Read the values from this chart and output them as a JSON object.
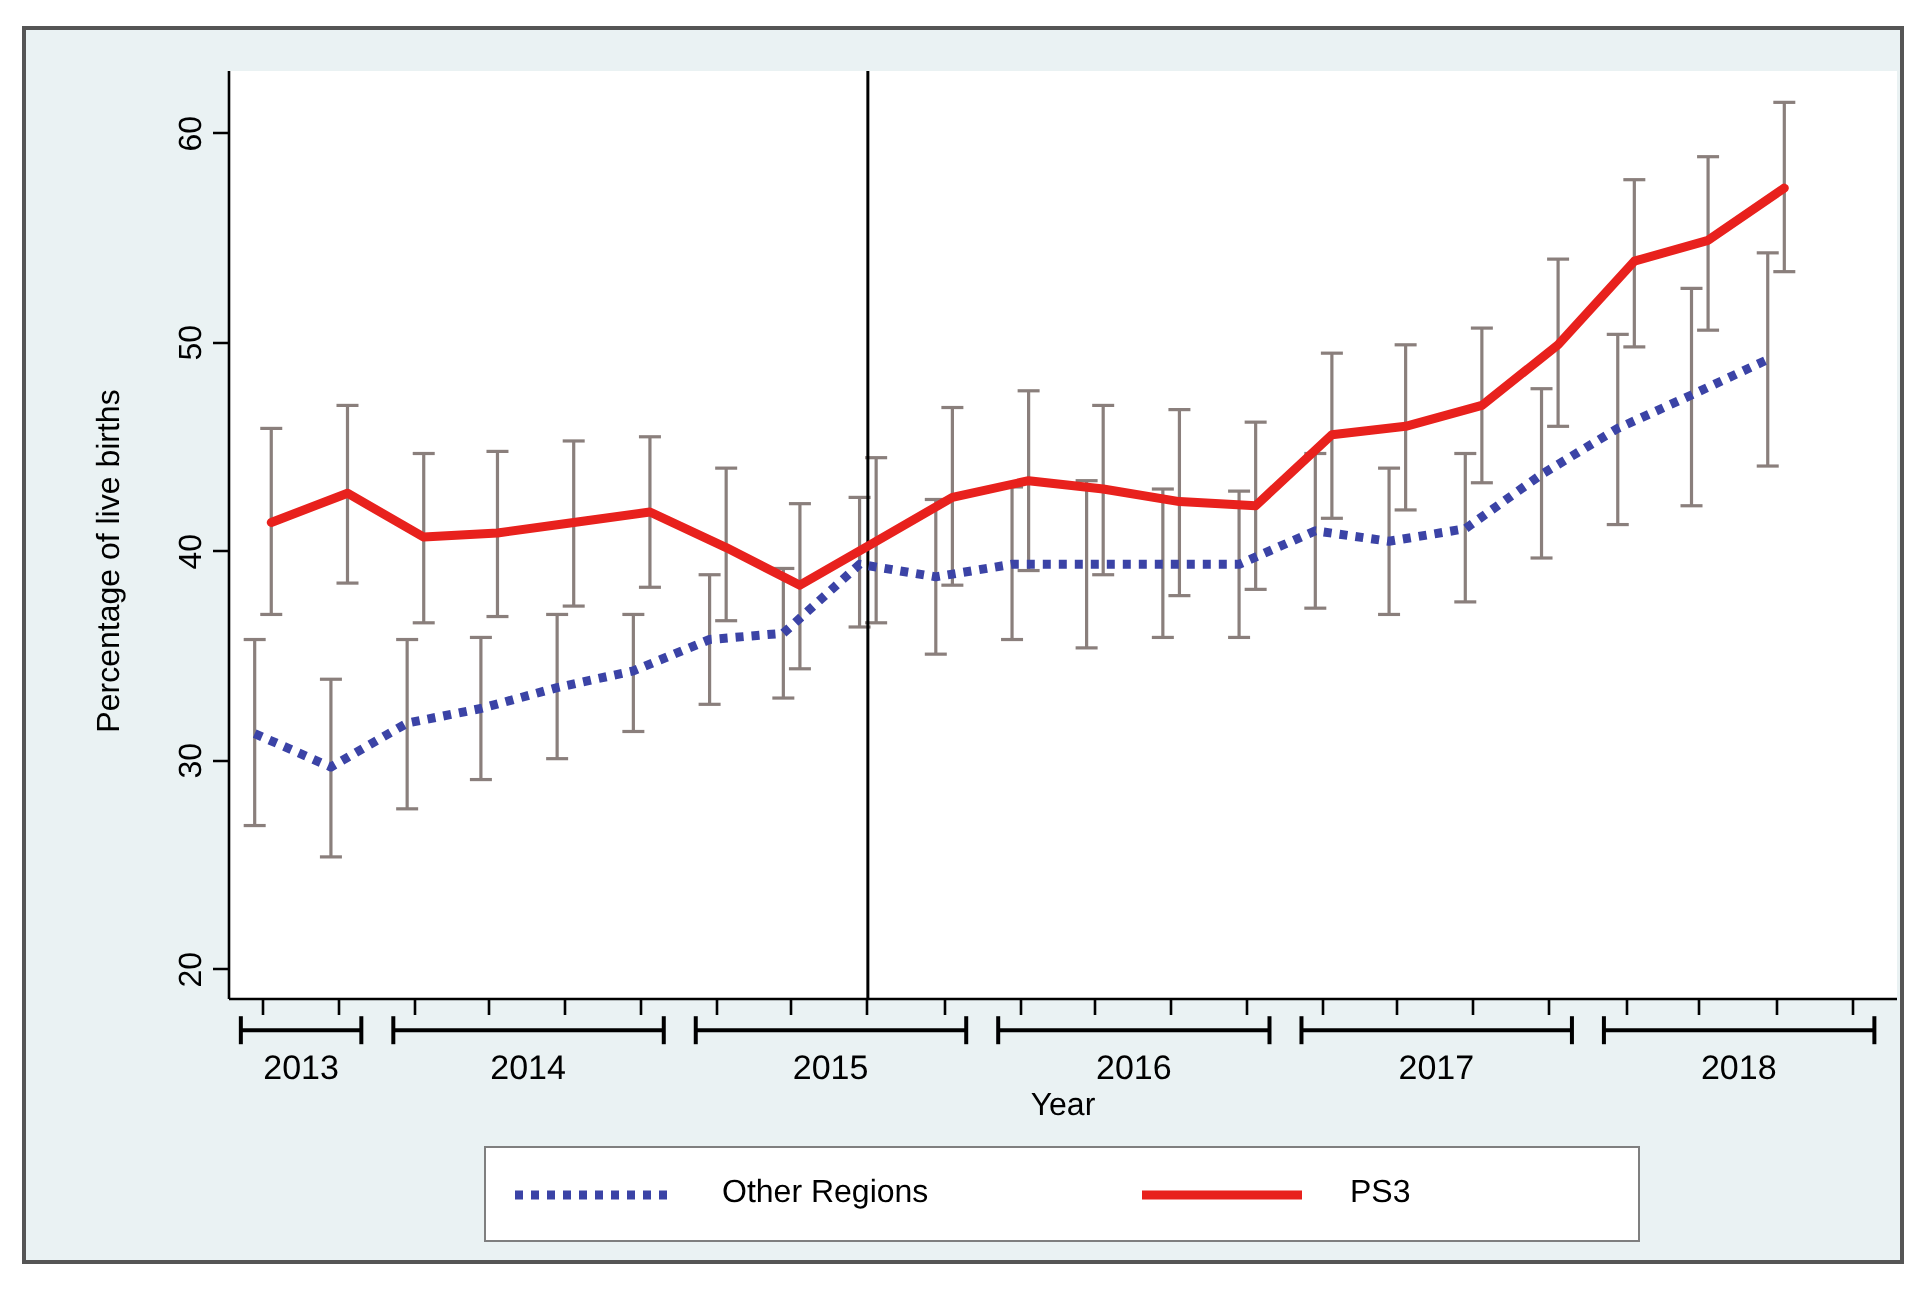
{
  "chart_data": {
    "type": "line",
    "xlabel": "Year",
    "ylabel": "Percentage of live births",
    "xlim": [
      "2013-07-05",
      "2019-01-08"
    ],
    "ylim": [
      18.6,
      63
    ],
    "yticks": [
      20,
      30,
      40,
      50,
      60
    ],
    "xticks": [
      {
        "value": "2013-08-15",
        "label": null
      },
      {
        "value": "2013-11-15",
        "label": null
      },
      {
        "value": "2014-02-15",
        "label": null
      },
      {
        "value": "2014-05-15",
        "label": null
      },
      {
        "value": "2014-08-15",
        "label": null
      },
      {
        "value": "2014-11-15",
        "label": null
      },
      {
        "value": "2015-02-15",
        "label": null
      },
      {
        "value": "2015-05-15",
        "label": null
      },
      {
        "value": "2015-08-15",
        "label": null
      },
      {
        "value": "2015-11-15",
        "label": null
      },
      {
        "value": "2016-02-15",
        "label": null
      },
      {
        "value": "2016-05-15",
        "label": null
      },
      {
        "value": "2016-08-15",
        "label": null
      },
      {
        "value": "2016-11-15",
        "label": null
      },
      {
        "value": "2017-02-15",
        "label": null
      },
      {
        "value": "2017-05-15",
        "label": null
      },
      {
        "value": "2017-08-15",
        "label": null
      },
      {
        "value": "2017-11-15",
        "label": null
      },
      {
        "value": "2018-02-15",
        "label": null
      },
      {
        "value": "2018-05-15",
        "label": null
      },
      {
        "value": "2018-08-15",
        "label": null
      },
      {
        "value": "2018-11-15",
        "label": null
      },
      {
        "value": "2013-09-30",
        "label": "2013"
      },
      {
        "value": "2014-07-01",
        "label": "2014"
      },
      {
        "value": "2015-07-01",
        "label": "2015"
      },
      {
        "value": "2016-07-01",
        "label": "2016"
      },
      {
        "value": "2017-07-01",
        "label": "2017"
      },
      {
        "value": "2018-07-01",
        "label": "2018"
      }
    ],
    "ref_lines": [
      {
        "axis": "x",
        "value": "2015-08-15",
        "color": "#000000"
      }
    ],
    "legend": "bottom",
    "series": [
      {
        "name": "Other Regions",
        "color": "#3b43a6",
        "line_style": "dotted",
        "x": [
          "2013-08-05",
          "2013-11-05",
          "2014-02-05",
          "2014-05-05",
          "2014-08-05",
          "2014-11-05",
          "2015-02-05",
          "2015-05-05",
          "2015-08-05",
          "2015-11-05",
          "2016-02-05",
          "2016-05-05",
          "2016-08-05",
          "2016-11-05",
          "2017-02-05",
          "2017-05-05",
          "2017-08-05",
          "2017-11-05",
          "2018-02-05",
          "2018-05-05",
          "2018-08-05"
        ],
        "values": [
          31.3,
          29.7,
          31.8,
          32.5,
          33.5,
          34.3,
          35.8,
          36.1,
          39.4,
          38.8,
          39.4,
          39.4,
          39.4,
          39.4,
          41.0,
          40.5,
          41.1,
          43.7,
          45.9,
          47.5,
          49.2
        ],
        "errors": [
          [
            26.9,
            35.8
          ],
          [
            25.4,
            33.9
          ],
          [
            27.7,
            35.8
          ],
          [
            29.1,
            35.9
          ],
          [
            30.1,
            37.0
          ],
          [
            31.4,
            37.0
          ],
          [
            32.7,
            38.9
          ],
          [
            33.0,
            39.2
          ],
          [
            36.4,
            42.6
          ],
          [
            35.1,
            42.5
          ],
          [
            35.8,
            43.1
          ],
          [
            35.4,
            43.4
          ],
          [
            35.9,
            43.0
          ],
          [
            35.9,
            42.9
          ],
          [
            37.3,
            44.7
          ],
          [
            37.0,
            44.0
          ],
          [
            37.6,
            44.7
          ],
          [
            39.7,
            47.8
          ],
          [
            41.3,
            50.4
          ],
          [
            42.2,
            52.6
          ],
          [
            44.1,
            54.3
          ]
        ]
      },
      {
        "name": "PS3",
        "color": "#e8211d",
        "line_style": "solid",
        "x": [
          "2013-08-25",
          "2013-11-25",
          "2014-02-25",
          "2014-05-25",
          "2014-08-25",
          "2014-11-25",
          "2015-02-25",
          "2015-05-25",
          "2015-08-25",
          "2015-11-25",
          "2016-02-25",
          "2016-05-25",
          "2016-08-25",
          "2016-11-25",
          "2017-02-25",
          "2017-05-25",
          "2017-08-25",
          "2017-11-25",
          "2018-02-25",
          "2018-05-25",
          "2018-08-25"
        ],
        "values": [
          41.4,
          42.8,
          40.7,
          40.9,
          41.4,
          41.9,
          40.2,
          38.4,
          40.5,
          42.6,
          43.4,
          43.0,
          42.4,
          42.2,
          45.6,
          46.0,
          47.0,
          49.9,
          53.9,
          54.9,
          57.4
        ],
        "errors": [
          [
            37.0,
            45.9
          ],
          [
            38.5,
            47.0
          ],
          [
            36.6,
            44.7
          ],
          [
            36.9,
            44.8
          ],
          [
            37.4,
            45.3
          ],
          [
            38.3,
            45.5
          ],
          [
            36.7,
            44.0
          ],
          [
            34.4,
            42.3
          ],
          [
            36.6,
            44.5
          ],
          [
            38.4,
            46.9
          ],
          [
            39.1,
            47.7
          ],
          [
            38.9,
            47.0
          ],
          [
            37.9,
            46.8
          ],
          [
            38.2,
            46.2
          ],
          [
            41.6,
            49.5
          ],
          [
            42.0,
            49.9
          ],
          [
            43.3,
            50.7
          ],
          [
            46.0,
            54.0
          ],
          [
            49.8,
            57.8
          ],
          [
            50.6,
            58.9
          ],
          [
            53.4,
            61.5
          ]
        ]
      }
    ]
  }
}
